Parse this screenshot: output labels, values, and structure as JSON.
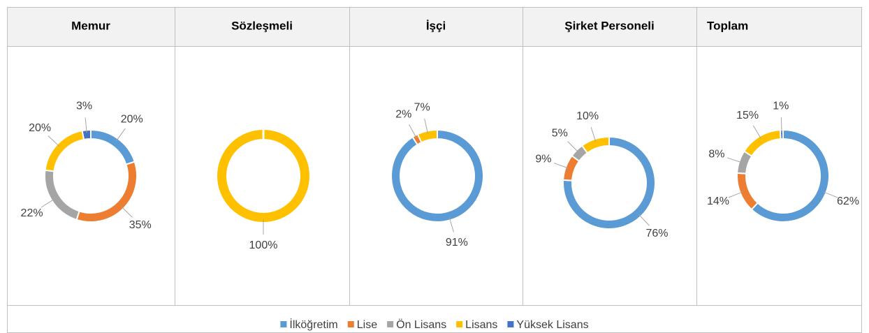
{
  "chart_data": [
    {
      "type": "donut",
      "title": "Memur",
      "categories": [
        "İlköğretim",
        "Lise",
        "Ön Lisans",
        "Lisans",
        "Yüksek Lisans"
      ],
      "values": [
        20,
        35,
        22,
        20,
        3
      ],
      "value_labels": [
        "20%",
        "35%",
        "22%",
        "20%",
        "3%"
      ],
      "colors": [
        "#5b9bd5",
        "#ed7d31",
        "#a5a5a5",
        "#ffc000",
        "#4472c4"
      ]
    },
    {
      "type": "donut",
      "title": "Sözleşmeli",
      "categories": [
        "Lisans"
      ],
      "values": [
        100
      ],
      "value_labels": [
        "100%"
      ],
      "colors": [
        "#ffc000"
      ]
    },
    {
      "type": "donut",
      "title": "İşçi",
      "categories": [
        "İlköğretim",
        "Lise",
        "Lisans"
      ],
      "values": [
        91,
        2,
        7
      ],
      "value_labels": [
        "91%",
        "2%",
        "7%"
      ],
      "colors": [
        "#5b9bd5",
        "#ed7d31",
        "#ffc000"
      ]
    },
    {
      "type": "donut",
      "title": "Şirket Personeli",
      "categories": [
        "İlköğretim",
        "Lise",
        "Ön Lisans",
        "Lisans"
      ],
      "values": [
        76,
        9,
        5,
        10
      ],
      "value_labels": [
        "76%",
        "9%",
        "5%",
        "10%"
      ],
      "colors": [
        "#5b9bd5",
        "#ed7d31",
        "#a5a5a5",
        "#ffc000"
      ]
    },
    {
      "type": "donut",
      "title": "Toplam",
      "categories": [
        "İlköğretim",
        "Lise",
        "Ön Lisans",
        "Lisans",
        "Yüksek Lisans"
      ],
      "values": [
        62,
        14,
        8,
        15,
        1
      ],
      "value_labels": [
        "62%",
        "14%",
        "8%",
        "15%",
        "1%"
      ],
      "colors": [
        "#5b9bd5",
        "#ed7d31",
        "#a5a5a5",
        "#ffc000",
        "#4472c4"
      ]
    }
  ]
}
